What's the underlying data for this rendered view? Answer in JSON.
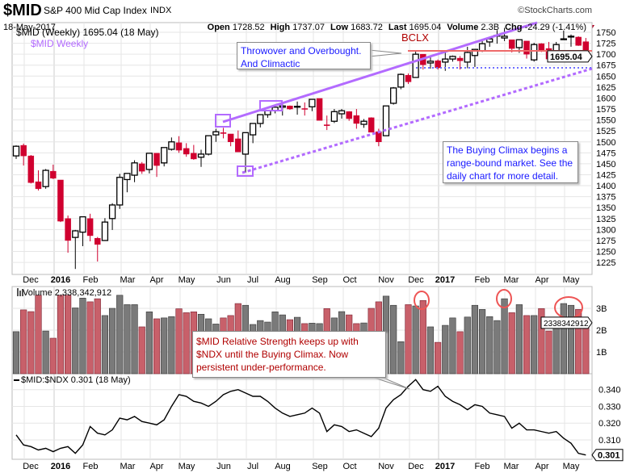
{
  "header": {
    "symbol": "$MID",
    "name": "S&P 400 Mid Cap Index",
    "exchange": "INDX",
    "brand": "©StockCharts.com",
    "date": "18-May-2017",
    "open_label": "Open",
    "open": "1728.52",
    "high_label": "High",
    "high": "1737.07",
    "low_label": "Low",
    "low": "1683.72",
    "last_label": "Last",
    "last": "1695.04",
    "volume_label": "Volume",
    "volume": "2.3B",
    "chg_label": "Chg",
    "chg": "-24.29 (-1.41%)"
  },
  "colors": {
    "up_candle": "#000000",
    "down_candle": "#d0002f",
    "volume_up": "#7a7a7a",
    "volume_down": "#c8606a",
    "trendline": "#b36bff",
    "resistance": "#ee6a6a",
    "support": "#6f6fff",
    "annotation_red": "#b00000",
    "annotation_blue": "#1a1aff"
  },
  "chart_data": [
    {
      "type": "candlestick",
      "title": "$MID (Weekly) 1695.04 (18 May)",
      "overlay_label": "$MID Weekly",
      "ylim": [
        1210,
        1765
      ],
      "y_ticks": [
        1225,
        1250,
        1275,
        1300,
        1325,
        1350,
        1375,
        1400,
        1425,
        1450,
        1475,
        1500,
        1525,
        1550,
        1575,
        1600,
        1625,
        1650,
        1675,
        1700,
        1725,
        1750
      ],
      "last_value_label": "1695.04",
      "x_tick_labels": [
        "Dec",
        "2016",
        "Feb",
        "Mar",
        "Apr",
        "May",
        "Jun",
        "Jul",
        "Aug",
        "Sep",
        "Oct",
        "Nov",
        "Dec",
        "2017",
        "Feb",
        "Mar",
        "Apr",
        "May"
      ],
      "grid": true,
      "ohlc": [
        [
          1468,
          1492,
          1461,
          1490
        ],
        [
          1492,
          1496,
          1446,
          1468
        ],
        [
          1468,
          1470,
          1405,
          1407
        ],
        [
          1409,
          1435,
          1389,
          1393
        ],
        [
          1398,
          1438,
          1393,
          1435
        ],
        [
          1433,
          1448,
          1415,
          1417
        ],
        [
          1413,
          1413,
          1317,
          1319
        ],
        [
          1325,
          1332,
          1247,
          1275
        ],
        [
          1282,
          1299,
          1210,
          1297
        ],
        [
          1294,
          1329,
          1262,
          1329
        ],
        [
          1325,
          1336,
          1273,
          1286
        ],
        [
          1280,
          1283,
          1227,
          1266
        ],
        [
          1275,
          1326,
          1275,
          1317
        ],
        [
          1325,
          1360,
          1299,
          1356
        ],
        [
          1356,
          1427,
          1347,
          1419
        ],
        [
          1414,
          1428,
          1385,
          1428
        ],
        [
          1424,
          1458,
          1408,
          1452
        ],
        [
          1450,
          1454,
          1427,
          1433
        ],
        [
          1437,
          1474,
          1428,
          1474
        ],
        [
          1474,
          1474,
          1420,
          1446
        ],
        [
          1452,
          1487,
          1444,
          1487
        ],
        [
          1483,
          1510,
          1480,
          1500
        ],
        [
          1498,
          1513,
          1475,
          1481
        ],
        [
          1485,
          1497,
          1466,
          1472
        ],
        [
          1474,
          1493,
          1459,
          1461
        ],
        [
          1465,
          1482,
          1443,
          1472
        ],
        [
          1472,
          1514,
          1469,
          1514
        ],
        [
          1516,
          1530,
          1500,
          1523
        ],
        [
          1521,
          1532,
          1508,
          1519
        ],
        [
          1518,
          1518,
          1490,
          1500
        ],
        [
          1507,
          1526,
          1477,
          1477
        ],
        [
          1472,
          1521,
          1430,
          1521
        ],
        [
          1516,
          1542,
          1497,
          1542
        ],
        [
          1542,
          1562,
          1533,
          1562
        ],
        [
          1562,
          1571,
          1555,
          1571
        ],
        [
          1571,
          1579,
          1565,
          1579
        ],
        [
          1579,
          1590,
          1560,
          1582
        ],
        [
          1582,
          1583,
          1573,
          1575
        ],
        [
          1580,
          1592,
          1562,
          1581
        ],
        [
          1576,
          1590,
          1560,
          1575
        ],
        [
          1580,
          1597,
          1570,
          1597
        ],
        [
          1599,
          1599,
          1549,
          1549
        ],
        [
          1539,
          1560,
          1527,
          1537
        ],
        [
          1547,
          1575,
          1543,
          1569
        ],
        [
          1564,
          1575,
          1553,
          1571
        ],
        [
          1569,
          1570,
          1548,
          1553
        ],
        [
          1560,
          1575,
          1530,
          1542
        ],
        [
          1540,
          1552,
          1532,
          1547
        ],
        [
          1555,
          1556,
          1522,
          1522
        ],
        [
          1523,
          1530,
          1490,
          1500
        ],
        [
          1514,
          1582,
          1514,
          1582
        ],
        [
          1588,
          1625,
          1585,
          1623
        ],
        [
          1625,
          1656,
          1620,
          1654
        ],
        [
          1652,
          1656,
          1632,
          1637
        ],
        [
          1647,
          1708,
          1647,
          1700
        ],
        [
          1700,
          1700,
          1665,
          1676
        ],
        [
          1680,
          1695,
          1667,
          1684
        ],
        [
          1685,
          1688,
          1665,
          1669
        ],
        [
          1682,
          1705,
          1662,
          1689
        ],
        [
          1689,
          1697,
          1683,
          1695
        ],
        [
          1691,
          1696,
          1665,
          1685
        ],
        [
          1682,
          1717,
          1668,
          1704
        ],
        [
          1697,
          1711,
          1671,
          1711
        ],
        [
          1708,
          1733,
          1705,
          1724
        ],
        [
          1728,
          1740,
          1717,
          1735
        ],
        [
          1742,
          1755,
          1724,
          1743
        ],
        [
          1737,
          1760,
          1730,
          1741
        ],
        [
          1733,
          1733,
          1704,
          1713
        ],
        [
          1715,
          1733,
          1703,
          1733
        ],
        [
          1730,
          1730,
          1690,
          1700
        ],
        [
          1687,
          1726,
          1683,
          1722
        ],
        [
          1724,
          1725,
          1705,
          1709
        ],
        [
          1713,
          1728,
          1686,
          1689
        ],
        [
          1691,
          1728,
          1690,
          1722
        ],
        [
          1735,
          1754,
          1733,
          1735
        ],
        [
          1741,
          1745,
          1717,
          1741
        ],
        [
          1739,
          1741,
          1719,
          1720
        ],
        [
          1728.52,
          1737.07,
          1683.72,
          1695.04
        ]
      ],
      "resistance_level": 1695,
      "support_level": 1655
    },
    {
      "type": "bar",
      "title": "Volume 2,338,342,912",
      "y_ticks": [
        "1B",
        "2B",
        "3B"
      ],
      "last_value_label": "2338342912",
      "unit": "B",
      "values": [
        1.93,
        2.93,
        2.85,
        3.6,
        1.96,
        1.63,
        3.6,
        3.6,
        3.02,
        3.47,
        3.3,
        3.44,
        2.67,
        3.0,
        3.6,
        3.17,
        3.17,
        2.15,
        2.84,
        2.52,
        2.56,
        2.62,
        2.98,
        2.8,
        2.84,
        2.73,
        2.52,
        2.28,
        2.56,
        2.67,
        3.22,
        3.14,
        2.26,
        2.44,
        2.37,
        2.84,
        2.7,
        2.48,
        2.59,
        2.3,
        2.32,
        2.3,
        2.99,
        2.56,
        2.85,
        2.7,
        2.3,
        2.33,
        3.0,
        3.3,
        3.56,
        3.14,
        1.47,
        3.17,
        3.11,
        3.36,
        2.15,
        1.44,
        2.22,
        2.56,
        1.93,
        2.6,
        3.14,
        2.95,
        2.62,
        2.44,
        3.44,
        2.8,
        3.17,
        2.67,
        2.67,
        2.99,
        1.96,
        2.6,
        3.22,
        3.14,
        2.95,
        2.338
      ],
      "colors": "grrrgrrrggrrgggggrgrggrrrgggrrrggggggrgrggrggrrgrrgggrgrgrggrggggggrgrgrrgggrr"
    },
    {
      "type": "line",
      "title": "$MID:$NDX 0.301 (18 May)",
      "y_ticks": [
        "0.310",
        "0.320",
        "0.330",
        "0.340"
      ],
      "last_value_label": "0.301",
      "values": [
        0.313,
        0.307,
        0.306,
        0.304,
        0.305,
        0.303,
        0.305,
        0.306,
        0.302,
        0.307,
        0.318,
        0.314,
        0.313,
        0.316,
        0.323,
        0.322,
        0.324,
        0.321,
        0.32,
        0.319,
        0.322,
        0.33,
        0.337,
        0.336,
        0.333,
        0.332,
        0.33,
        0.333,
        0.337,
        0.339,
        0.34,
        0.338,
        0.336,
        0.336,
        0.333,
        0.329,
        0.326,
        0.324,
        0.325,
        0.326,
        0.329,
        0.326,
        0.315,
        0.319,
        0.318,
        0.315,
        0.316,
        0.314,
        0.312,
        0.317,
        0.329,
        0.334,
        0.337,
        0.342,
        0.346,
        0.34,
        0.339,
        0.342,
        0.336,
        0.333,
        0.331,
        0.328,
        0.331,
        0.33,
        0.326,
        0.325,
        0.324,
        0.317,
        0.32,
        0.316,
        0.316,
        0.315,
        0.314,
        0.315,
        0.311,
        0.308,
        0.302,
        0.301
      ]
    }
  ],
  "annotations": {
    "bclx": "BCLX",
    "throwover": [
      "Throwover and Overbought.",
      "And Climactic"
    ],
    "buying_climax": [
      "The Buying Climax begins a",
      "range-bound market. See the",
      "daily chart for more detail."
    ],
    "relative_strength": [
      "$MID Relative Strength keeps up with",
      "$NDX until the Buying Climax. Now",
      "persistent under-performance."
    ]
  }
}
